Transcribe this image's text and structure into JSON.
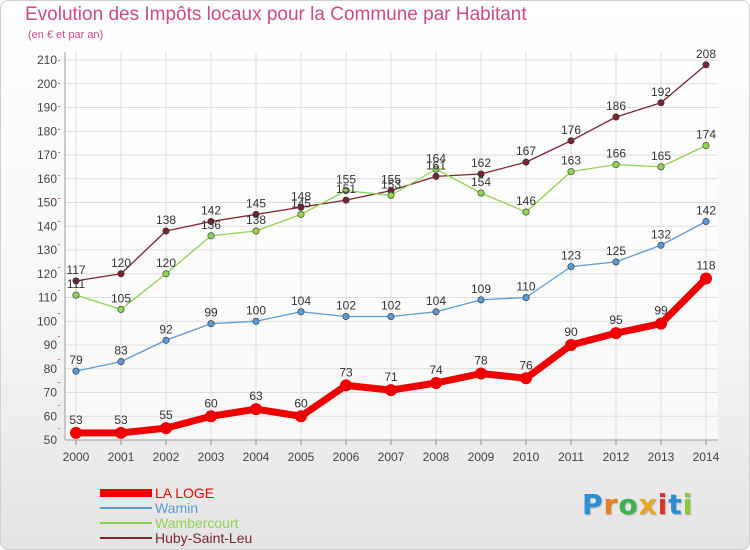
{
  "title": "Evolution des Impôts locaux pour la Commune par Habitant",
  "subtitle": "(en € et par an)",
  "logo": {
    "letters": [
      "P",
      "r",
      "o",
      "x",
      "i",
      "t",
      "i"
    ],
    "colors": [
      "#2b8fd6",
      "#e87e1e",
      "#3bb24a",
      "#e8a81e",
      "#d9352a",
      "#2b8fd6",
      "#8cc63f"
    ]
  },
  "chart_data": {
    "type": "line",
    "title": "Evolution des Impôts locaux pour la Commune par Habitant",
    "ylabel": "(en € et par an)",
    "xlabel": "",
    "x": [
      "2000",
      "2001",
      "2002",
      "2003",
      "2004",
      "2005",
      "2006",
      "2007",
      "2008",
      "2009",
      "2010",
      "2011",
      "2012",
      "2013",
      "2014"
    ],
    "ylim": [
      50,
      210
    ],
    "yticks": [
      50,
      60,
      70,
      80,
      90,
      100,
      110,
      120,
      130,
      140,
      150,
      160,
      170,
      180,
      190,
      200,
      210
    ],
    "grid": true,
    "legend_position": "bottom-left",
    "series": [
      {
        "name": "LA LOGE",
        "color": "#ee0000",
        "values": [
          53,
          53,
          55,
          60,
          63,
          60,
          73,
          71,
          74,
          78,
          76,
          90,
          95,
          99,
          118
        ]
      },
      {
        "name": "Wamin",
        "color": "#5b9bd5",
        "values": [
          79,
          83,
          92,
          99,
          100,
          104,
          102,
          102,
          104,
          109,
          110,
          123,
          125,
          132,
          142
        ]
      },
      {
        "name": "Wambercourt",
        "color": "#8fd453",
        "values": [
          111,
          105,
          120,
          136,
          138,
          145,
          155,
          153,
          164,
          154,
          146,
          163,
          166,
          165,
          174
        ]
      },
      {
        "name": "Huby-Saint-Leu",
        "color": "#7a2430",
        "values": [
          117,
          120,
          138,
          142,
          145,
          148,
          151,
          155,
          161,
          162,
          167,
          176,
          186,
          192,
          208
        ]
      }
    ]
  }
}
